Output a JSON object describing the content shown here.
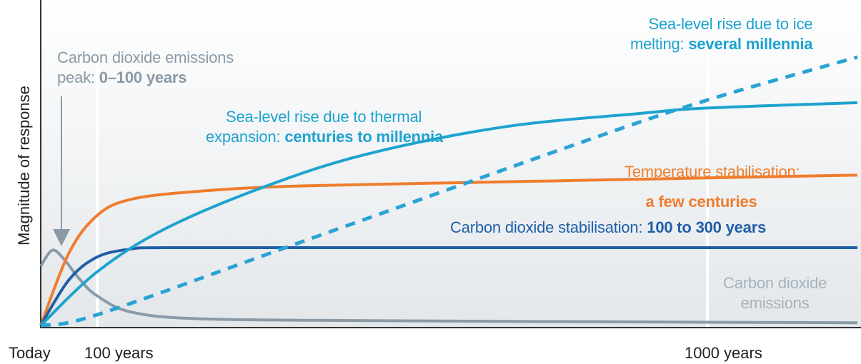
{
  "chart_data": {
    "type": "line",
    "ylabel": "Magnitude of response",
    "x_ticks": [
      {
        "label": "Today",
        "x": 0
      },
      {
        "label": "100 years",
        "x": 100
      },
      {
        "label": "1000 years",
        "x": 1000
      }
    ],
    "x_axis_scale": "compressed (logarithmic-like)",
    "grid": false,
    "series": [
      {
        "key": "co2_emissions",
        "color": "#8a9aa6",
        "style": "solid",
        "label_line1": "Carbon dioxide emissions",
        "label_prefix": "peak: ",
        "label_bold": "0–100 years",
        "end_label_line1": "Carbon dioxide",
        "end_label_line2": "emissions",
        "points": [
          [
            0,
            0.22
          ],
          [
            20,
            0.28
          ],
          [
            40,
            0.25
          ],
          [
            70,
            0.17
          ],
          [
            100,
            0.11
          ],
          [
            150,
            0.05
          ],
          [
            250,
            0.025
          ],
          [
            500,
            0.018
          ],
          [
            1000,
            0.012
          ],
          [
            1200,
            0.01
          ]
        ]
      },
      {
        "key": "temperature",
        "color": "#ef7d2d",
        "style": "solid",
        "label_line1": "Temperature stabilisation:",
        "label_bold": "a few centuries",
        "points": [
          [
            0,
            0.0
          ],
          [
            50,
            0.27
          ],
          [
            100,
            0.41
          ],
          [
            150,
            0.47
          ],
          [
            250,
            0.5
          ],
          [
            400,
            0.52
          ],
          [
            700,
            0.535
          ],
          [
            1000,
            0.55
          ],
          [
            1200,
            0.56
          ]
        ]
      },
      {
        "key": "co2_stabilisation",
        "color": "#1f5fa8",
        "style": "solid",
        "label_prefix": "Carbon dioxide stabilisation: ",
        "label_bold": "100 to 300 years",
        "points": [
          [
            0,
            0.0
          ],
          [
            50,
            0.17
          ],
          [
            100,
            0.255
          ],
          [
            150,
            0.285
          ],
          [
            200,
            0.29
          ],
          [
            400,
            0.29
          ],
          [
            800,
            0.29
          ],
          [
            1200,
            0.29
          ]
        ]
      },
      {
        "key": "thermal_expansion",
        "color": "#1ea3cf",
        "style": "solid",
        "label_line1": "Sea-level rise due to thermal",
        "label_prefix": "expansion: ",
        "label_bold": "centuries to millennia",
        "points": [
          [
            0,
            0.0
          ],
          [
            100,
            0.2
          ],
          [
            200,
            0.36
          ],
          [
            350,
            0.52
          ],
          [
            500,
            0.64
          ],
          [
            700,
            0.74
          ],
          [
            900,
            0.79
          ],
          [
            1000,
            0.81
          ],
          [
            1200,
            0.83
          ]
        ]
      },
      {
        "key": "ice_melting",
        "color": "#2aa3d4",
        "style": "dashed",
        "label_line1": "Sea-level rise due to ice",
        "label_prefix": "melting: ",
        "label_bold": "several millennia",
        "points": [
          [
            0,
            0.0
          ],
          [
            100,
            0.04
          ],
          [
            400,
            0.31
          ],
          [
            800,
            0.67
          ],
          [
            1000,
            0.84
          ],
          [
            1200,
            1.0
          ]
        ]
      }
    ]
  }
}
